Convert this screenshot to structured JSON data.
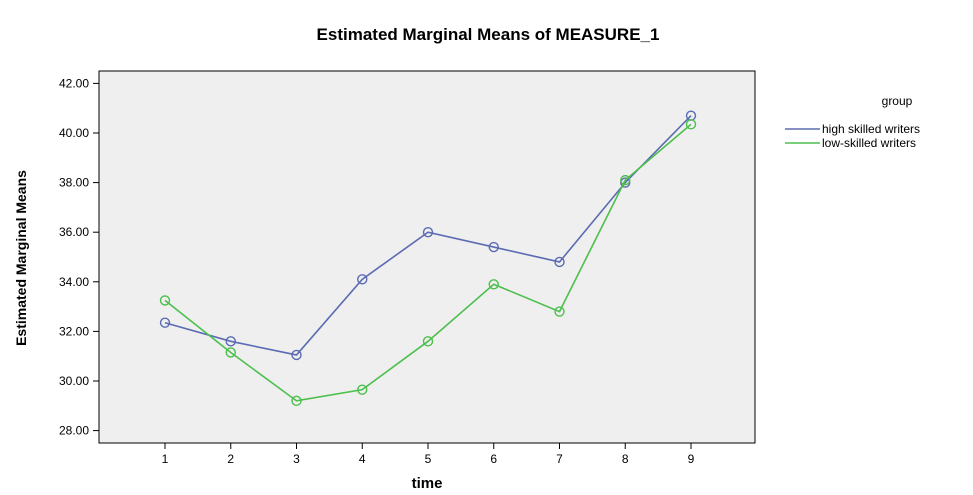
{
  "chart_data": {
    "type": "line",
    "title": "Estimated Marginal Means of MEASURE_1",
    "xlabel": "time",
    "ylabel": "Estimated Marginal Means",
    "x": [
      "1",
      "2",
      "3",
      "4",
      "5",
      "6",
      "7",
      "8",
      "9"
    ],
    "ylim": [
      27.5,
      42.5
    ],
    "yticks": [
      "28.00",
      "30.00",
      "32.00",
      "34.00",
      "36.00",
      "38.00",
      "40.00",
      "42.00"
    ],
    "grid": false,
    "legend_position": "top-right (outside)",
    "legend_title": "group",
    "background_color": "#efefef",
    "series": [
      {
        "name": "high skilled writers",
        "color": "#5b6bb3",
        "values": [
          32.35,
          31.6,
          31.05,
          34.1,
          36.0,
          35.4,
          34.8,
          38.0,
          40.7
        ]
      },
      {
        "name": "low-skilled writers",
        "color": "#4cbf4c",
        "values": [
          33.25,
          31.15,
          29.2,
          29.65,
          31.6,
          33.9,
          32.8,
          38.1,
          40.35
        ]
      }
    ]
  }
}
